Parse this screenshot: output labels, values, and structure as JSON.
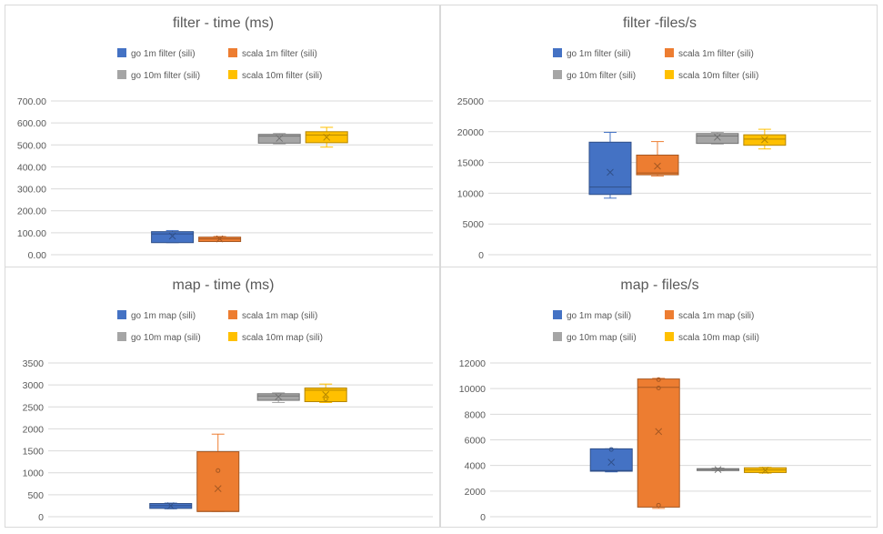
{
  "colors": {
    "go1m": "#4472C4",
    "scala1m": "#ED7D31",
    "go10m": "#A5A5A5",
    "scala10m": "#FFC000"
  },
  "chart_data": [
    {
      "type": "box",
      "title": "filter - time (ms)",
      "ylim": [
        0,
        700
      ],
      "ystep": 100,
      "tick_decimals": 2,
      "legend": "top",
      "series": [
        {
          "name": "go 1m filter (sili)",
          "color_key": "go1m",
          "min": 55,
          "q1": 55,
          "median": 95,
          "q3": 105,
          "max": 110,
          "mean": 85,
          "points": []
        },
        {
          "name": "scala 1m filter (sili)",
          "color_key": "scala1m",
          "min": 60,
          "q1": 60,
          "median": 72,
          "q3": 80,
          "max": 83,
          "mean": 72,
          "points": []
        },
        {
          "name": "go 10m filter (sili)",
          "color_key": "go10m",
          "min": 505,
          "q1": 508,
          "median": 540,
          "q3": 548,
          "max": 552,
          "mean": 530,
          "points": []
        },
        {
          "name": "scala 10m filter (sili)",
          "color_key": "scala10m",
          "min": 490,
          "q1": 510,
          "median": 545,
          "q3": 560,
          "max": 580,
          "mean": 535,
          "points": []
        }
      ]
    },
    {
      "type": "box",
      "title": "filter -files/s",
      "ylim": [
        0,
        25000
      ],
      "ystep": 5000,
      "tick_decimals": 0,
      "legend": "top",
      "series": [
        {
          "name": "go 1m filter (sili)",
          "color_key": "go1m",
          "min": 9200,
          "q1": 9800,
          "median": 11000,
          "q3": 18300,
          "max": 19900,
          "mean": 13400,
          "points": []
        },
        {
          "name": "scala 1m filter (sili)",
          "color_key": "scala1m",
          "min": 12800,
          "q1": 13000,
          "median": 13300,
          "q3": 16200,
          "max": 18400,
          "mean": 14400,
          "points": []
        },
        {
          "name": "go 10m filter (sili)",
          "color_key": "go10m",
          "min": 18000,
          "q1": 18100,
          "median": 19300,
          "q3": 19700,
          "max": 19900,
          "mean": 19100,
          "points": []
        },
        {
          "name": "scala 10m filter (sili)",
          "color_key": "scala10m",
          "min": 17200,
          "q1": 17800,
          "median": 18800,
          "q3": 19500,
          "max": 20400,
          "mean": 18700,
          "points": []
        }
      ]
    },
    {
      "type": "box",
      "title": "map - time (ms)",
      "ylim": [
        0,
        3500
      ],
      "ystep": 500,
      "tick_decimals": 0,
      "legend": "top",
      "series": [
        {
          "name": "go 1m map (sili)",
          "color_key": "go1m",
          "min": 180,
          "q1": 190,
          "median": 250,
          "q3": 300,
          "max": 310,
          "mean": 250,
          "points": []
        },
        {
          "name": "scala 1m map (sili)",
          "color_key": "scala1m",
          "min": 120,
          "q1": 120,
          "median": 120,
          "q3": 1480,
          "max": 1880,
          "mean": 640,
          "points": [
            1050
          ]
        },
        {
          "name": "go 10m map (sili)",
          "color_key": "go10m",
          "min": 2600,
          "q1": 2650,
          "median": 2750,
          "q3": 2800,
          "max": 2820,
          "mean": 2730,
          "points": []
        },
        {
          "name": "scala 10m map (sili)",
          "color_key": "scala10m",
          "min": 2600,
          "q1": 2620,
          "median": 2880,
          "q3": 2930,
          "max": 3020,
          "mean": 2780,
          "points": [
            2680
          ]
        }
      ]
    },
    {
      "type": "box",
      "title": "map - files/s",
      "ylim": [
        0,
        12000
      ],
      "ystep": 2000,
      "tick_decimals": 0,
      "legend": "top",
      "series": [
        {
          "name": "go 1m map (sili)",
          "color_key": "go1m",
          "min": 3500,
          "q1": 3550,
          "median": 3600,
          "q3": 5300,
          "max": 5300,
          "mean": 4250,
          "points": [
            5250
          ]
        },
        {
          "name": "scala 1m map (sili)",
          "color_key": "scala1m",
          "min": 650,
          "q1": 750,
          "median": 10100,
          "q3": 10750,
          "max": 10800,
          "mean": 6650,
          "points": [
            900,
            10050,
            10700
          ]
        },
        {
          "name": "go 10m map (sili)",
          "color_key": "go10m",
          "min": 3600,
          "q1": 3600,
          "median": 3700,
          "q3": 3750,
          "max": 3800,
          "mean": 3680,
          "points": []
        },
        {
          "name": "scala 10m map (sili)",
          "color_key": "scala10m",
          "min": 3400,
          "q1": 3450,
          "median": 3650,
          "q3": 3820,
          "max": 3850,
          "mean": 3620,
          "points": []
        }
      ]
    }
  ]
}
